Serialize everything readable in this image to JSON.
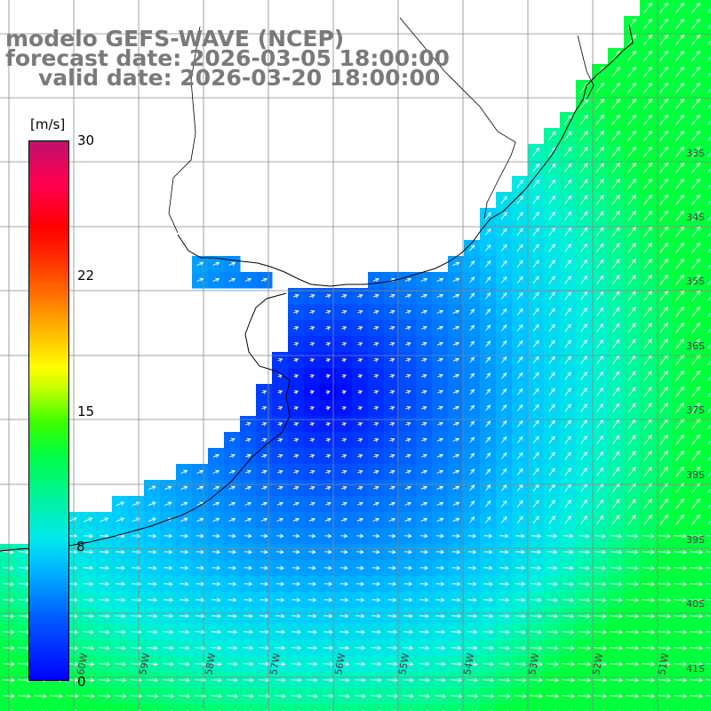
{
  "title": {
    "line1": "modelo GEFS-WAVE (NCEP)",
    "line2": "forecast date: 2026-03-05 18:00:00",
    "line3": "valid date: 2026-03-20 18:00:00"
  },
  "colorbar": {
    "unit": "[m/s]",
    "ticks": [
      "30",
      "22",
      "15",
      "8",
      "0"
    ],
    "range": [
      0,
      30
    ]
  },
  "grid": {
    "lat_labels": [
      "33S",
      "34S",
      "35S",
      "36S",
      "37S",
      "38S",
      "39S",
      "40S",
      "41S"
    ],
    "lon_labels": [
      "60W",
      "59W",
      "58W",
      "57W",
      "56W",
      "55W",
      "54W",
      "53W",
      "52W",
      "51W"
    ]
  },
  "colors": {
    "calm": "#0000ff",
    "moderate": "#00c8ff",
    "strong": "#00ff60",
    "land": "#ffffff",
    "grid": "#888888",
    "arrows": "#ffffff"
  }
}
